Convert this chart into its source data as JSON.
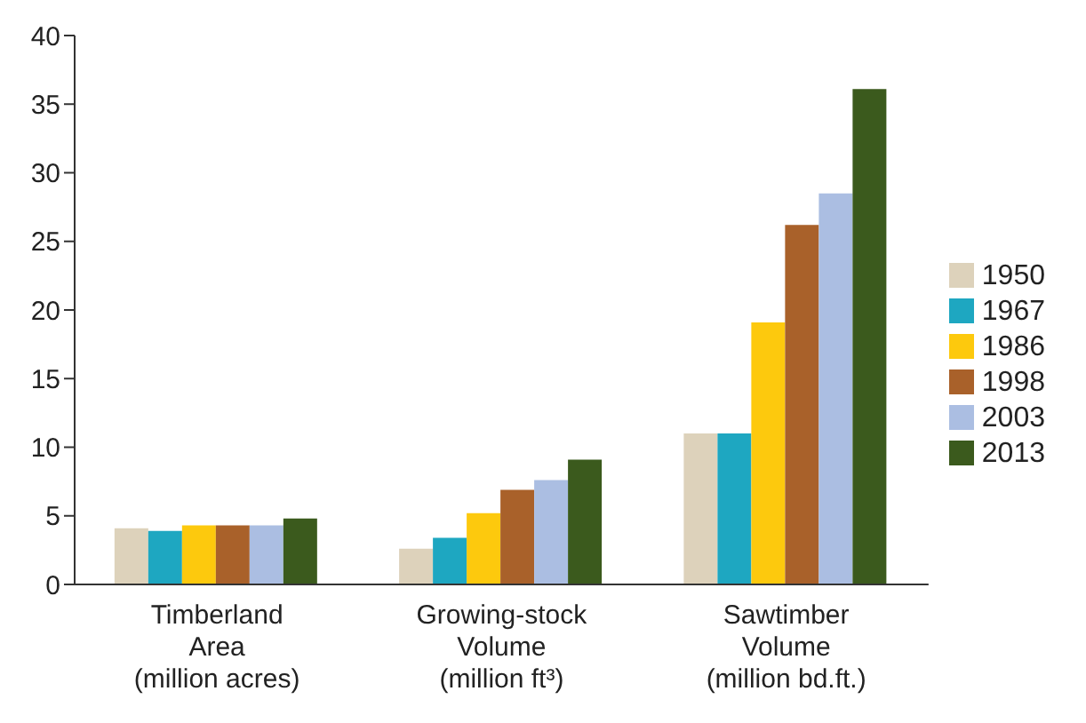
{
  "chart_data": {
    "type": "bar",
    "categories": [
      "Timberland\nArea\n(million acres)",
      "Growing-stock\nVolume\n(million ft³)",
      "Sawtimber\nVolume\n(million bd.ft.)"
    ],
    "series": [
      {
        "name": "1950",
        "color": "#ddd2bb",
        "values": [
          4.1,
          2.6,
          11
        ]
      },
      {
        "name": "1967",
        "color": "#1ea7c1",
        "values": [
          3.9,
          3.4,
          11
        ]
      },
      {
        "name": "1986",
        "color": "#fdc90d",
        "values": [
          4.3,
          5.2,
          19.1
        ]
      },
      {
        "name": "1998",
        "color": "#a9612a",
        "values": [
          4.3,
          6.9,
          26.2
        ]
      },
      {
        "name": "2003",
        "color": "#abbee2",
        "values": [
          4.3,
          7.6,
          28.5
        ]
      },
      {
        "name": "2013",
        "color": "#3b5a1d",
        "values": [
          4.8,
          9.1,
          36.1
        ]
      }
    ],
    "ylim": [
      0,
      40
    ],
    "yticks": [
      0,
      5,
      10,
      15,
      20,
      25,
      30,
      35,
      40
    ],
    "grid": false,
    "legend": "right"
  }
}
